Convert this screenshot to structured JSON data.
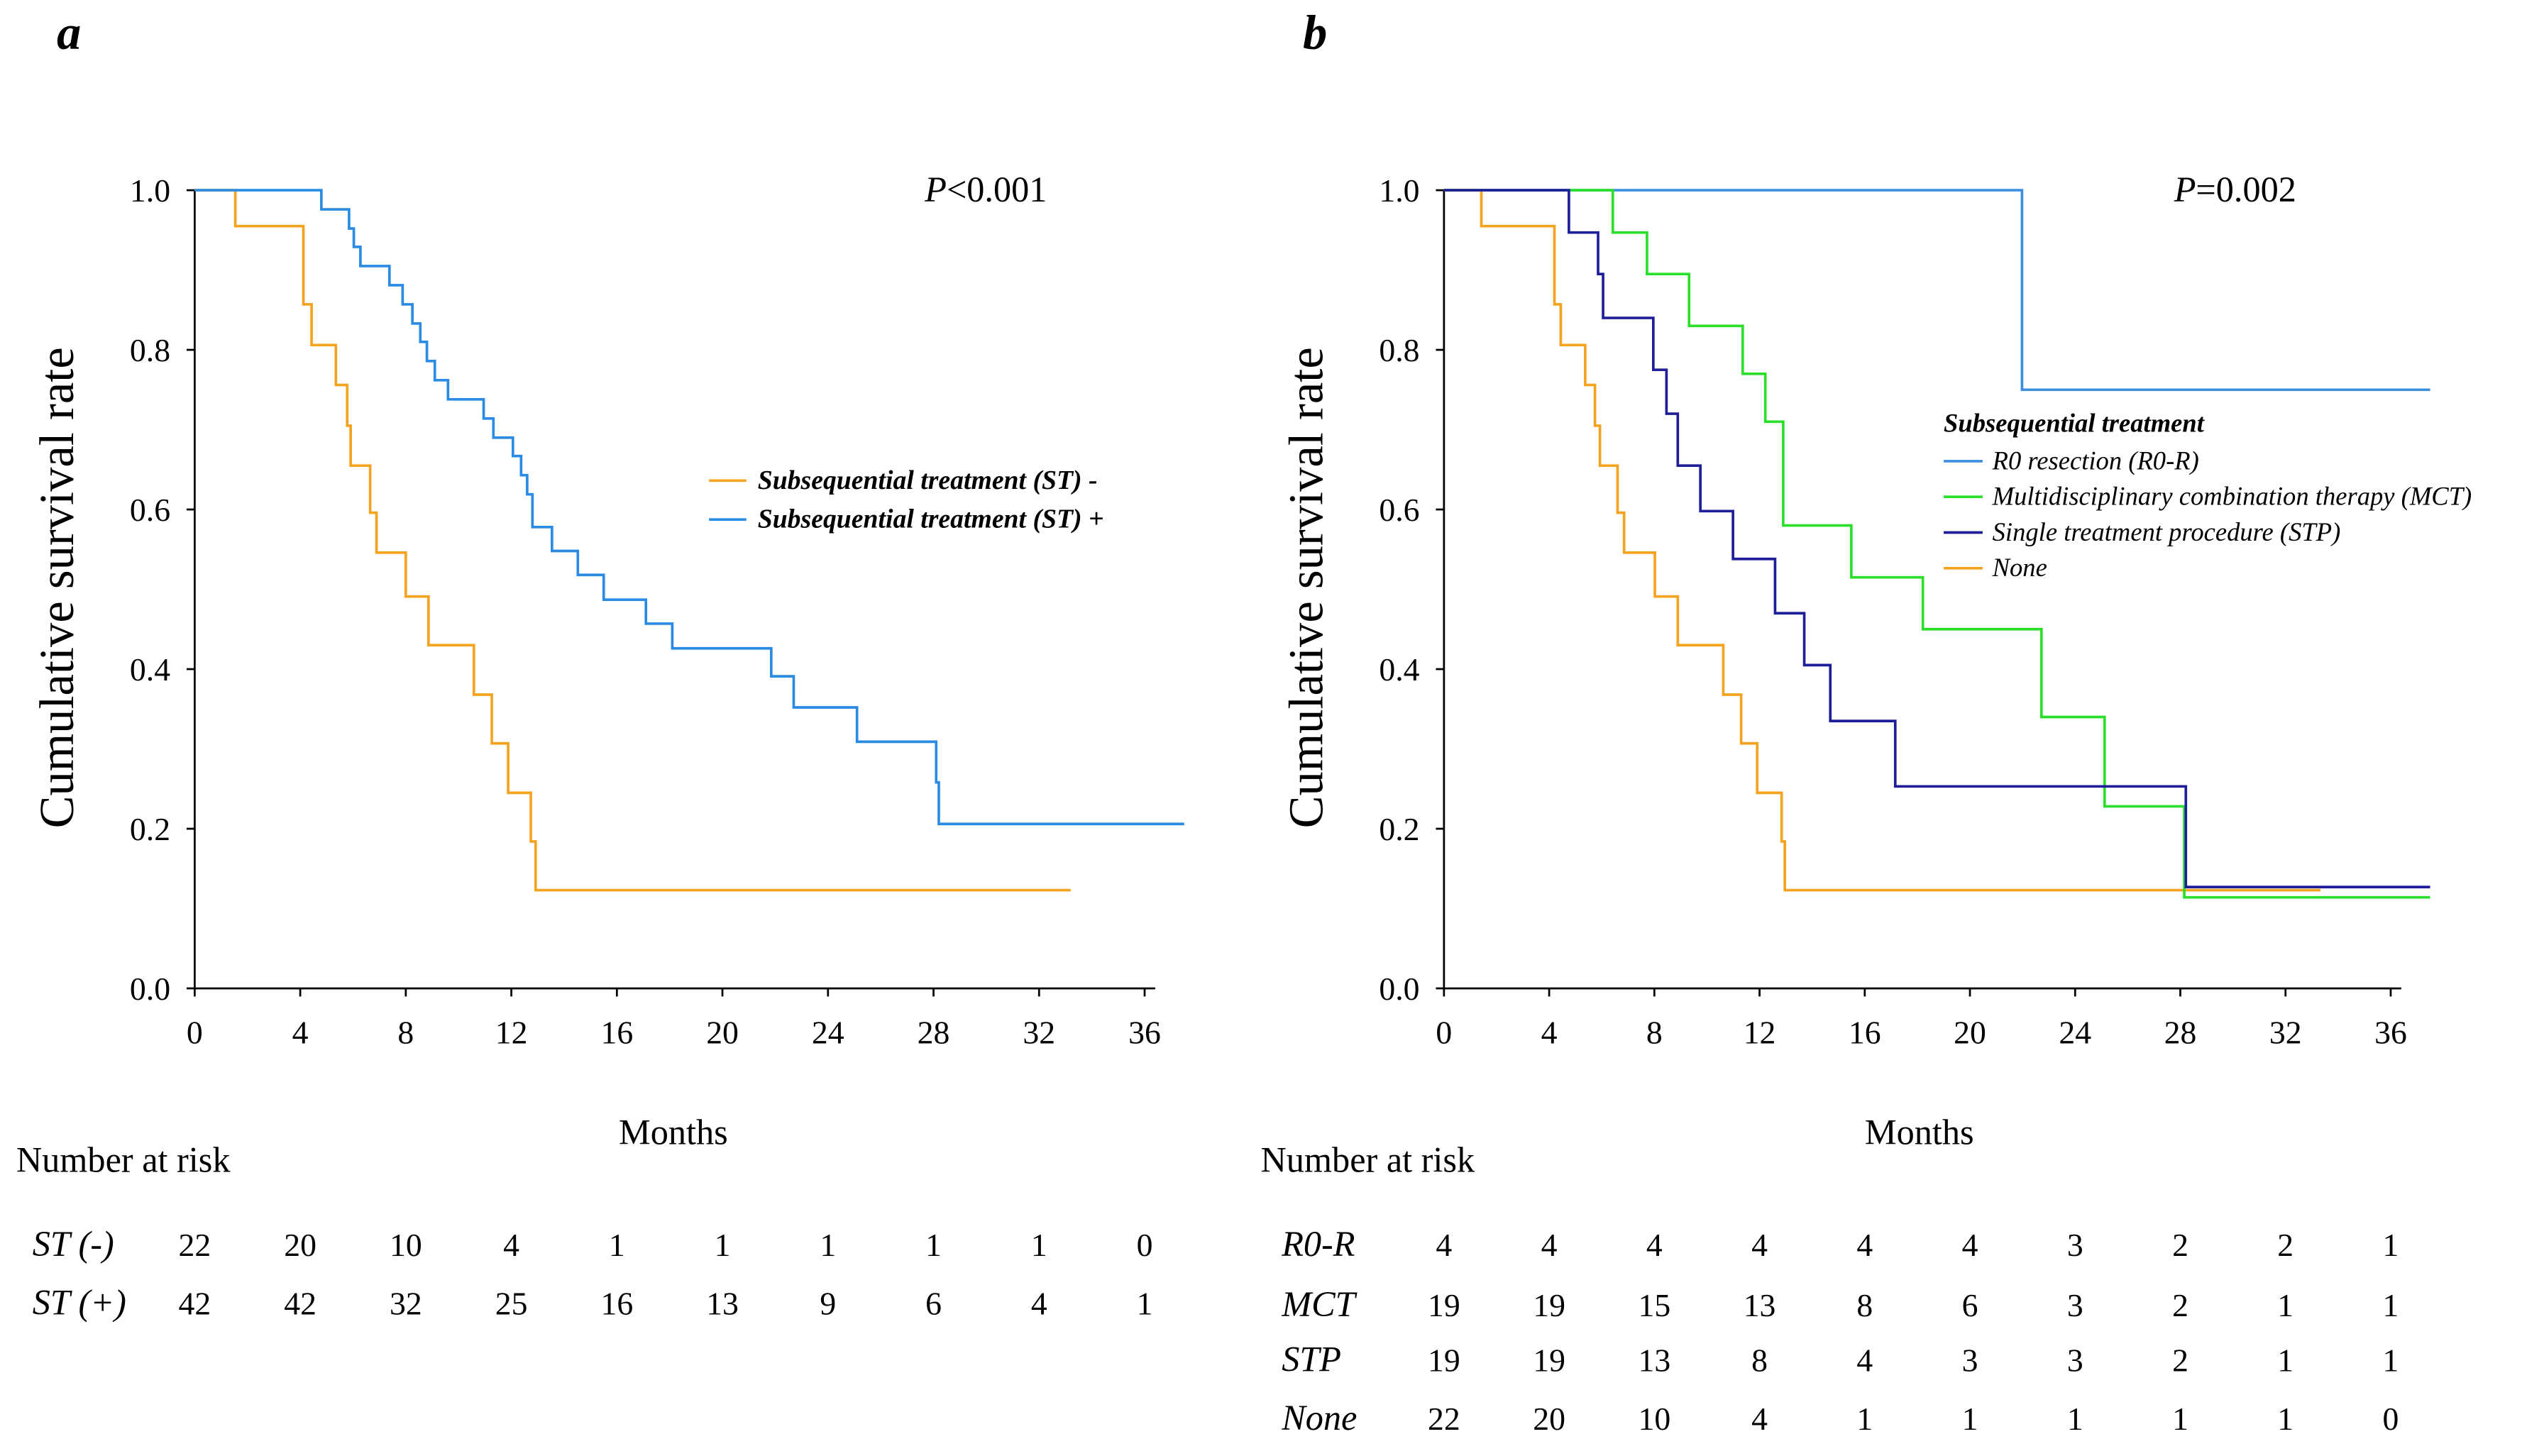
{
  "chart_data": [
    {
      "type": "line",
      "curve": "step",
      "panel_label": "a",
      "p_value": {
        "symbol": "P",
        "value": "<0.001"
      },
      "title": "",
      "xlabel": "Months",
      "ylabel": "Cumulative survival rate",
      "xlim": [
        0,
        36.4
      ],
      "ylim": [
        0,
        1
      ],
      "xticks": [
        0,
        4,
        8,
        12,
        16,
        20,
        24,
        28,
        32,
        36
      ],
      "xticklabels": [
        "0",
        "4",
        "8",
        "12",
        "16",
        "20",
        "24",
        "28",
        "32",
        "36"
      ],
      "yticks": [
        0,
        0.2,
        0.4,
        0.6,
        0.8,
        1.0
      ],
      "yticklabels": [
        "0.0",
        "0.2",
        "0.4",
        "0.6",
        "0.8",
        "1.0"
      ],
      "grid": false,
      "legend": {
        "position": "center-right",
        "style": "bold"
      },
      "series": [
        {
          "name": "Subsequential treatment (ST) -",
          "color": "#F5A31F",
          "x": [
            0,
            1.54,
            4.12,
            4.43,
            5.35,
            5.78,
            5.91,
            6.65,
            6.89,
            8.0,
            8.86,
            10.58,
            11.26,
            11.88,
            12.74,
            12.92
          ],
          "y": [
            1.0,
            0.955,
            0.857,
            0.806,
            0.756,
            0.705,
            0.655,
            0.596,
            0.546,
            0.491,
            0.43,
            0.368,
            0.307,
            0.245,
            0.184,
            0.123
          ],
          "x_end": 33.2
        },
        {
          "name": "Subsequential treatment (ST) +",
          "color": "#2A8BE4",
          "x": [
            0,
            4.8,
            5.85,
            6.03,
            6.28,
            7.38,
            7.88,
            8.25,
            8.55,
            8.8,
            9.1,
            9.6,
            10.95,
            11.32,
            12.06,
            12.37,
            12.6,
            12.8,
            13.54,
            14.52,
            15.5,
            17.1,
            18.1,
            21.85,
            22.7,
            25.1,
            28.1,
            28.2
          ],
          "y": [
            1.0,
            0.976,
            0.952,
            0.929,
            0.905,
            0.881,
            0.857,
            0.833,
            0.81,
            0.786,
            0.762,
            0.738,
            0.714,
            0.69,
            0.667,
            0.643,
            0.619,
            0.578,
            0.548,
            0.518,
            0.487,
            0.457,
            0.426,
            0.391,
            0.352,
            0.309,
            0.258,
            0.206
          ],
          "x_end": 37.5
        }
      ],
      "risk_table": {
        "title": "Number at risk",
        "times": [
          0,
          4,
          8,
          12,
          16,
          20,
          24,
          28,
          32,
          36
        ],
        "rows": [
          {
            "label": "ST (-)",
            "values": [
              "22",
              "20",
              "10",
              "4",
              "1",
              "1",
              "1",
              "1",
              "1",
              "0"
            ]
          },
          {
            "label": "ST (+)",
            "values": [
              "42",
              "42",
              "32",
              "25",
              "16",
              "13",
              "9",
              "6",
              "4",
              "1"
            ]
          }
        ]
      }
    },
    {
      "type": "line",
      "curve": "step",
      "panel_label": "b",
      "p_value": {
        "symbol": "P",
        "value": "=0.002"
      },
      "title": "",
      "xlabel": "Months",
      "ylabel": "Cumulative survival rate",
      "xlim": [
        0,
        36.4
      ],
      "ylim": [
        0,
        1
      ],
      "xticks": [
        0,
        4,
        8,
        12,
        16,
        20,
        24,
        28,
        32,
        36
      ],
      "xticklabels": [
        "0",
        "4",
        "8",
        "12",
        "16",
        "20",
        "24",
        "28",
        "32",
        "36"
      ],
      "yticks": [
        0,
        0.2,
        0.4,
        0.6,
        0.8,
        1.0
      ],
      "yticklabels": [
        "0.0",
        "0.2",
        "0.4",
        "0.6",
        "0.8",
        "1.0"
      ],
      "grid": false,
      "legend": {
        "position": "center-right",
        "title": "Subsequential treatment",
        "style": "plain"
      },
      "series": [
        {
          "name": "R0 resection (R0-R)",
          "color": "#3C8FE0",
          "x": [
            0,
            21.98
          ],
          "y": [
            1.0,
            0.75
          ],
          "x_end": 37.5
        },
        {
          "name": "Multidisciplinary combination therapy (MCT)",
          "color": "#2ADF2A",
          "x": [
            0,
            6.42,
            7.72,
            9.32,
            11.36,
            12.22,
            12.9,
            15.49,
            18.21,
            22.72,
            25.12,
            28.15
          ],
          "y": [
            1.0,
            0.947,
            0.895,
            0.83,
            0.77,
            0.71,
            0.58,
            0.515,
            0.45,
            0.34,
            0.228,
            0.114
          ],
          "x_end": 37.5
        },
        {
          "name": "Single treatment procedure (STP)",
          "color": "#1E1E9A",
          "x": [
            0,
            4.75,
            5.86,
            6.05,
            7.96,
            8.46,
            8.89,
            9.75,
            10.99,
            12.59,
            13.7,
            14.69,
            17.16,
            28.21
          ],
          "y": [
            1.0,
            0.947,
            0.895,
            0.84,
            0.775,
            0.72,
            0.655,
            0.598,
            0.538,
            0.47,
            0.405,
            0.335,
            0.253,
            0.127
          ],
          "x_end": 37.5
        },
        {
          "name": "None",
          "color": "#F5A31F",
          "x": [
            0,
            1.42,
            4.2,
            4.44,
            5.37,
            5.74,
            5.93,
            6.6,
            6.85,
            8.02,
            8.89,
            10.62,
            11.3,
            11.91,
            12.84,
            12.96
          ],
          "y": [
            1.0,
            0.955,
            0.857,
            0.806,
            0.756,
            0.705,
            0.655,
            0.596,
            0.546,
            0.491,
            0.43,
            0.368,
            0.307,
            0.245,
            0.184,
            0.123
          ],
          "x_end": 33.33
        }
      ],
      "risk_table": {
        "title": "Number at risk",
        "times": [
          0,
          4,
          8,
          12,
          16,
          20,
          24,
          28,
          32,
          36
        ],
        "rows": [
          {
            "label": "R0-R",
            "values": [
              "4",
              "4",
              "4",
              "4",
              "4",
              "4",
              "3",
              "2",
              "2",
              "1"
            ]
          },
          {
            "label": "MCT",
            "values": [
              "19",
              "19",
              "15",
              "13",
              "8",
              "6",
              "3",
              "2",
              "1",
              "1"
            ]
          },
          {
            "label": "STP",
            "values": [
              "19",
              "19",
              "13",
              "8",
              "4",
              "3",
              "3",
              "2",
              "1",
              "1"
            ]
          },
          {
            "label": "None",
            "values": [
              "22",
              "20",
              "10",
              "4",
              "1",
              "1",
              "1",
              "1",
              "1",
              "0"
            ]
          }
        ]
      }
    }
  ]
}
